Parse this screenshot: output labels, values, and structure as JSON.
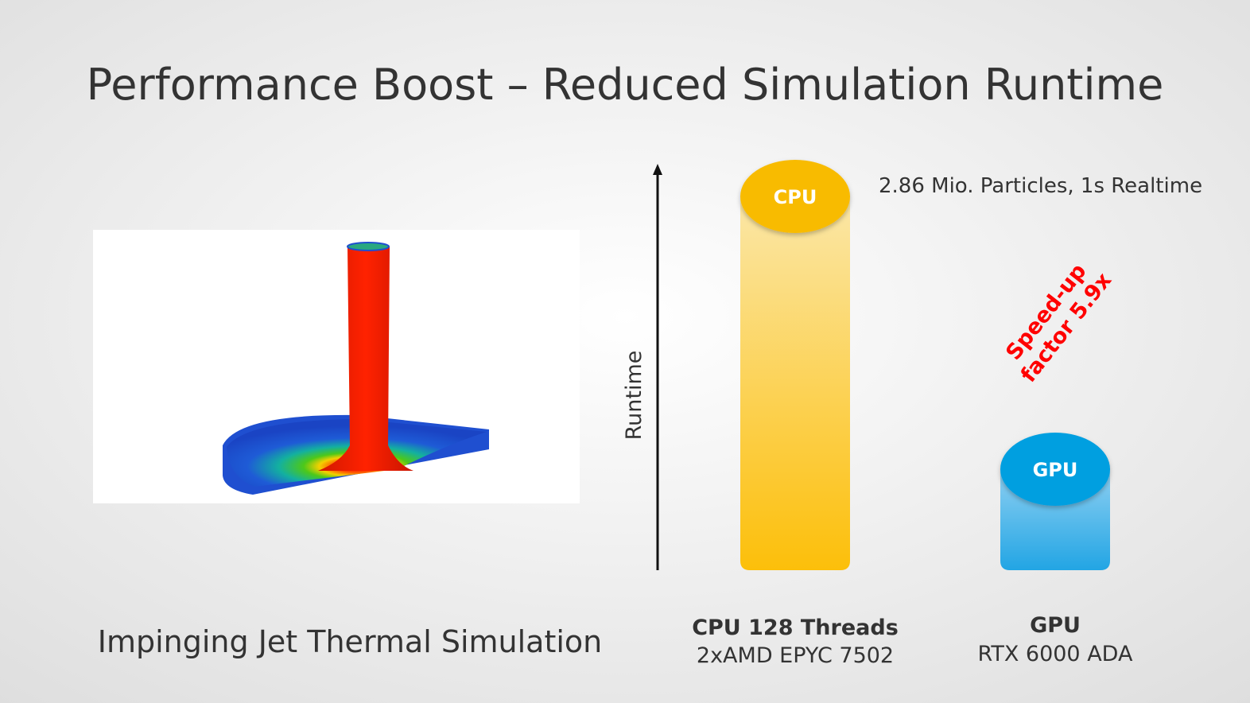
{
  "slide": {
    "title": "Performance Boost – Reduced Simulation Runtime",
    "figure": {
      "caption": "Impinging Jet Thermal Simulation"
    },
    "chart": {
      "axis_label": "Runtime",
      "note": "2.86 Mio. Particles, 1s Realtime",
      "annotation": [
        "Speed-up",
        "factor 5.9x"
      ],
      "bars": [
        {
          "name": "CPU",
          "label": "CPU 128 Threads",
          "detail": "2xAMD EPYC 7502"
        },
        {
          "name": "GPU",
          "label": "GPU",
          "detail": "RTX 6000 ADA"
        }
      ]
    }
  }
}
